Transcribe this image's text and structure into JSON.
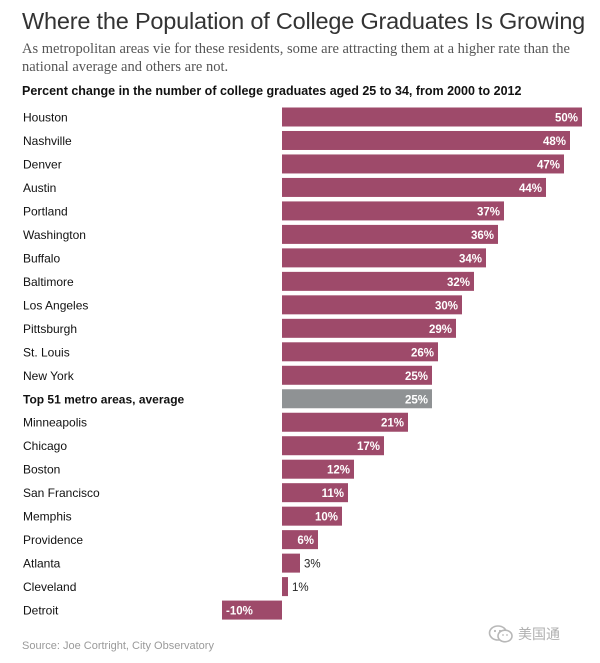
{
  "header": {
    "title": "Where the Population of College Graduates Is Growing",
    "subtitle": "As metropolitan areas vie for these residents, some are attracting them at a higher rate than the national average and others are not."
  },
  "chart_data": {
    "type": "bar",
    "orientation": "horizontal",
    "title": "Percent change in the number of college graduates aged 25 to 34, from 2000 to 2012",
    "categories": [
      "Houston",
      "Nashville",
      "Denver",
      "Austin",
      "Portland",
      "Washington",
      "Buffalo",
      "Baltimore",
      "Los Angeles",
      "Pittsburgh",
      "St. Louis",
      "New York",
      "Top 51 metro areas, average",
      "Minneapolis",
      "Chicago",
      "Boston",
      "San Francisco",
      "Memphis",
      "Providence",
      "Atlanta",
      "Cleveland",
      "Detroit"
    ],
    "values": [
      50,
      48,
      47,
      44,
      37,
      36,
      34,
      32,
      30,
      29,
      26,
      25,
      25,
      21,
      17,
      12,
      11,
      10,
      6,
      3,
      1,
      -10
    ],
    "value_labels": [
      "50%",
      "48%",
      "47%",
      "44%",
      "37%",
      "36%",
      "34%",
      "32%",
      "30%",
      "29%",
      "26%",
      "25%",
      "25%",
      "21%",
      "17%",
      "12%",
      "11%",
      "10%",
      "6%",
      "3%",
      "1%",
      "-10%"
    ],
    "highlight_index": 12,
    "xlim": [
      -10,
      50
    ],
    "xlabel": "",
    "ylabel": "",
    "grid": false,
    "legend": "none",
    "colors": {
      "bar": "#9e4a6a",
      "highlight": "#8f9294",
      "label_inside": "#ffffff",
      "label_outside": "#222222"
    }
  },
  "footer": {
    "source": "Source: Joe Cortright, City Observatory"
  },
  "watermark": {
    "icon": "wechat-icon",
    "text": "美国通"
  }
}
